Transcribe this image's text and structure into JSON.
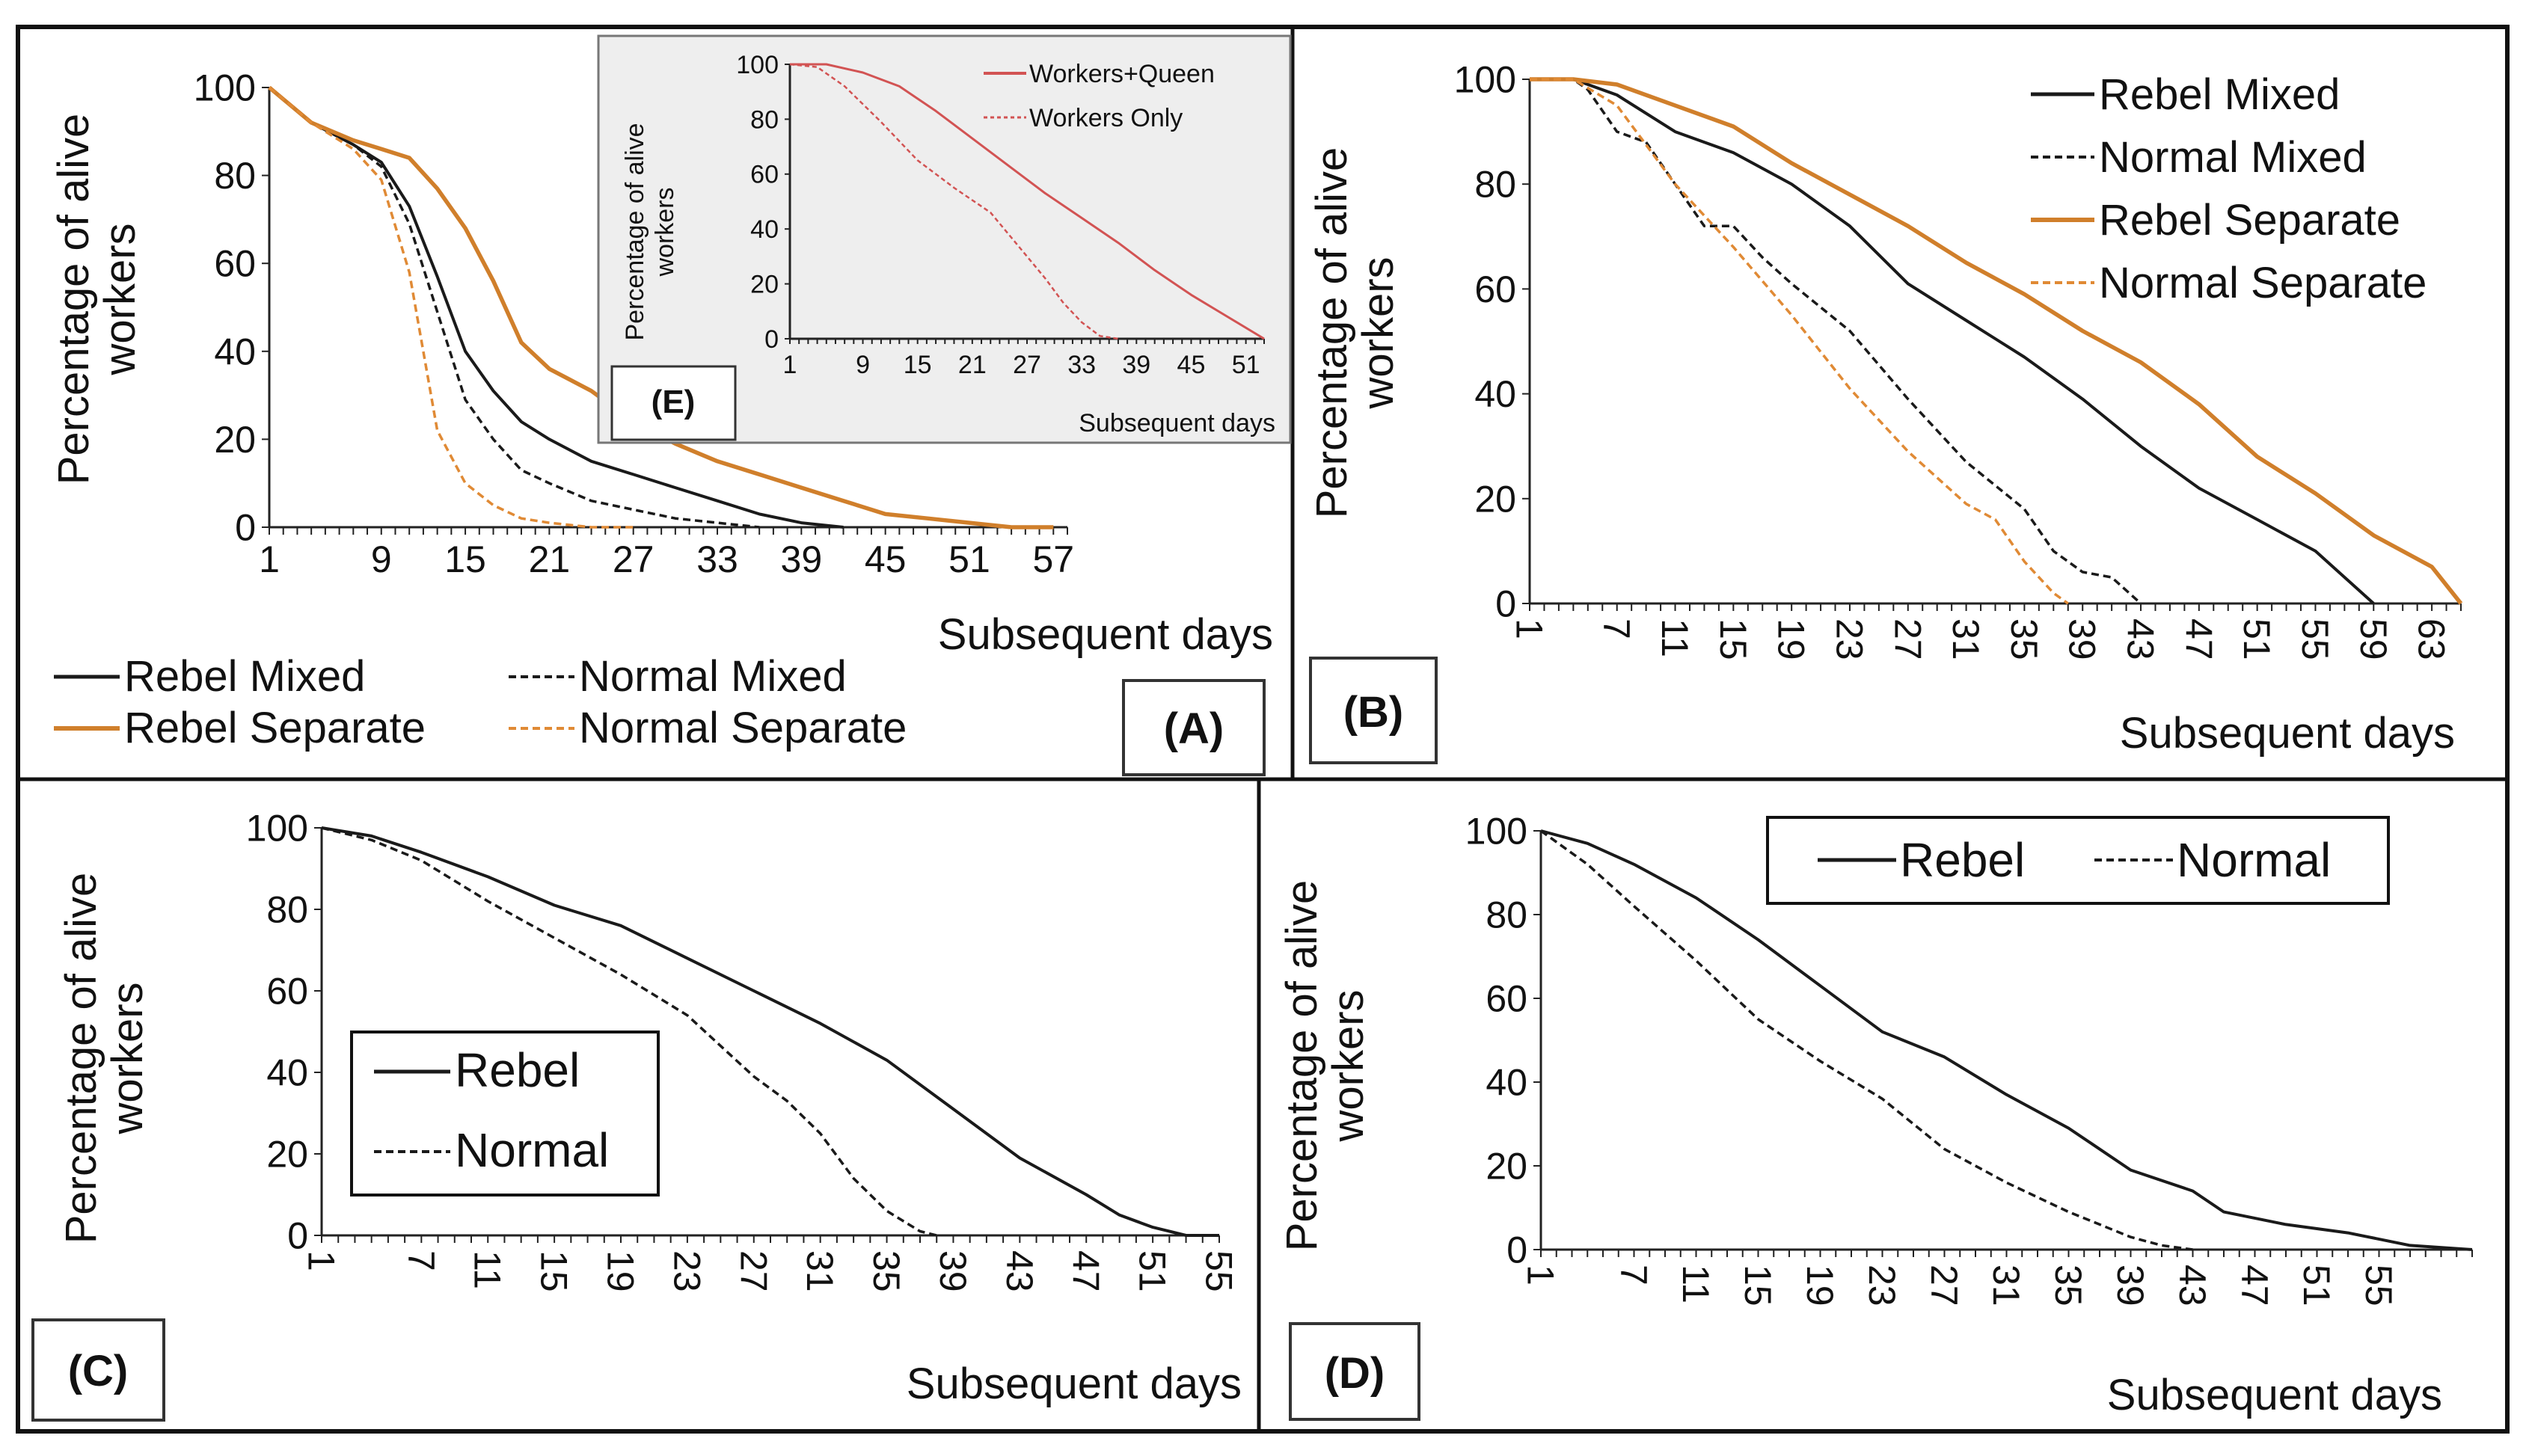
{
  "colors": {
    "rebel_mixed": "#1a1a1a",
    "normal_mixed": "#1a1a1a",
    "rebel_separate": "#d07f2b",
    "normal_separate": "#e08a35",
    "workers_queen": "#d25353",
    "workers_only": "#d25353",
    "inset_background": "#eeeeee"
  },
  "chart_data": [
    {
      "panel": "A",
      "label": "(A)",
      "type": "line",
      "title": "",
      "xlabel": "Subsequent days",
      "ylabel": [
        "Percentage of alive",
        "workers"
      ],
      "xlim": [
        1,
        58
      ],
      "ylim": [
        0,
        100
      ],
      "xticks": [
        "1",
        "9",
        "15",
        "21",
        "27",
        "33",
        "39",
        "45",
        "51",
        "57"
      ],
      "yticks": [
        "0",
        "20",
        "40",
        "60",
        "80",
        "100"
      ],
      "legend": [
        "Rebel Mixed",
        "Normal Mixed",
        "Rebel Separate",
        "Normal Separate"
      ],
      "series": [
        {
          "name": "Rebel Mixed",
          "style": "solid",
          "color": "#1a1a1a",
          "x": [
            1,
            4,
            7,
            9,
            11,
            13,
            15,
            17,
            19,
            21,
            24,
            27,
            30,
            33,
            36,
            39,
            42
          ],
          "y": [
            100,
            92,
            87,
            83,
            73,
            57,
            40,
            31,
            24,
            20,
            15,
            12,
            9,
            6,
            3,
            1,
            0
          ]
        },
        {
          "name": "Normal Mixed",
          "style": "dashed",
          "color": "#1a1a1a",
          "x": [
            1,
            4,
            7,
            9,
            11,
            13,
            15,
            17,
            19,
            21,
            24,
            27,
            30,
            33,
            36
          ],
          "y": [
            100,
            92,
            87,
            82,
            69,
            49,
            29,
            20,
            13,
            10,
            6,
            4,
            2,
            1,
            0
          ]
        },
        {
          "name": "Rebel Separate",
          "style": "solid",
          "color": "#d07f2b",
          "x": [
            1,
            4,
            7,
            9,
            11,
            13,
            15,
            17,
            19,
            21,
            24,
            27,
            30,
            33,
            36,
            39,
            42,
            45,
            48,
            51,
            54,
            57
          ],
          "y": [
            100,
            92,
            88,
            86,
            84,
            77,
            68,
            56,
            42,
            36,
            31,
            24,
            19,
            15,
            12,
            9,
            6,
            3,
            2,
            1,
            0,
            0
          ]
        },
        {
          "name": "Normal Separate",
          "style": "dashed",
          "color": "#e08a35",
          "x": [
            1,
            4,
            7,
            9,
            11,
            12,
            13,
            15,
            17,
            19,
            21,
            24,
            27
          ],
          "y": [
            100,
            92,
            86,
            79,
            58,
            40,
            22,
            10,
            5,
            2,
            1,
            0,
            0
          ]
        }
      ]
    },
    {
      "panel": "B",
      "label": "(B)",
      "type": "line",
      "title": "",
      "xlabel": "Subsequent days",
      "ylabel": [
        "Percentage of alive",
        "workers"
      ],
      "xlim": [
        1,
        65
      ],
      "ylim": [
        0,
        100
      ],
      "xticks": [
        "1",
        "7",
        "11",
        "15",
        "19",
        "23",
        "27",
        "31",
        "35",
        "39",
        "43",
        "47",
        "51",
        "55",
        "59",
        "63"
      ],
      "yticks": [
        "0",
        "20",
        "40",
        "60",
        "80",
        "100"
      ],
      "legend": [
        "Rebel Mixed",
        "Normal Mixed",
        "Rebel Separate",
        "Normal Separate"
      ],
      "series": [
        {
          "name": "Rebel Mixed",
          "style": "solid",
          "color": "#1a1a1a",
          "x": [
            1,
            4,
            7,
            11,
            15,
            19,
            23,
            27,
            31,
            35,
            39,
            43,
            47,
            51,
            55,
            59
          ],
          "y": [
            100,
            100,
            97,
            90,
            86,
            80,
            72,
            61,
            54,
            47,
            39,
            30,
            22,
            16,
            10,
            0
          ]
        },
        {
          "name": "Normal Mixed",
          "style": "dashed",
          "color": "#1a1a1a",
          "x": [
            1,
            4,
            5,
            7,
            9,
            11,
            13,
            15,
            17,
            19,
            23,
            27,
            31,
            35,
            37,
            39,
            41,
            43
          ],
          "y": [
            100,
            100,
            98,
            90,
            88,
            80,
            72,
            72,
            66,
            61,
            52,
            39,
            27,
            18,
            10,
            6,
            5,
            0
          ]
        },
        {
          "name": "Rebel Separate",
          "style": "solid",
          "color": "#d07f2b",
          "x": [
            1,
            4,
            7,
            11,
            15,
            19,
            23,
            27,
            31,
            35,
            39,
            43,
            47,
            51,
            55,
            59,
            63,
            65
          ],
          "y": [
            100,
            100,
            99,
            95,
            91,
            84,
            78,
            72,
            65,
            59,
            52,
            46,
            38,
            28,
            21,
            13,
            7,
            0
          ]
        },
        {
          "name": "Normal Separate",
          "style": "dashed",
          "color": "#e08a35",
          "x": [
            1,
            4,
            7,
            11,
            15,
            19,
            23,
            27,
            31,
            33,
            35,
            37,
            38
          ],
          "y": [
            100,
            100,
            95,
            80,
            68,
            55,
            41,
            29,
            19,
            16,
            8,
            2,
            0
          ]
        }
      ]
    },
    {
      "panel": "C",
      "label": "(C)",
      "type": "line",
      "title": "",
      "xlabel": "Subsequent days",
      "ylabel": [
        "Percentage of alive",
        "workers"
      ],
      "xlim": [
        1,
        55
      ],
      "ylim": [
        0,
        100
      ],
      "xticks": [
        "1",
        "7",
        "11",
        "15",
        "19",
        "23",
        "27",
        "31",
        "35",
        "39",
        "43",
        "47",
        "51",
        "55"
      ],
      "yticks": [
        "0",
        "20",
        "40",
        "60",
        "80",
        "100"
      ],
      "legend": [
        "Rebel",
        "Normal"
      ],
      "series": [
        {
          "name": "Rebel",
          "style": "solid",
          "color": "#1a1a1a",
          "x": [
            1,
            4,
            7,
            11,
            15,
            19,
            23,
            27,
            31,
            35,
            39,
            43,
            47,
            49,
            51,
            53,
            55
          ],
          "y": [
            100,
            98,
            94,
            88,
            81,
            76,
            68,
            60,
            52,
            43,
            31,
            19,
            10,
            5,
            2,
            0,
            0
          ]
        },
        {
          "name": "Normal",
          "style": "dashed",
          "color": "#1a1a1a",
          "x": [
            1,
            4,
            7,
            11,
            15,
            19,
            23,
            27,
            29,
            31,
            33,
            35,
            37,
            38
          ],
          "y": [
            100,
            97,
            92,
            82,
            73,
            64,
            54,
            39,
            33,
            25,
            14,
            6,
            1,
            0
          ]
        }
      ]
    },
    {
      "panel": "D",
      "label": "(D)",
      "type": "line",
      "title": "",
      "xlabel": "Subsequent days",
      "ylabel": [
        "Percentage of alive",
        "workers"
      ],
      "xlim": [
        1,
        61
      ],
      "ylim": [
        0,
        100
      ],
      "xticks": [
        "1",
        "7",
        "11",
        "15",
        "19",
        "23",
        "27",
        "31",
        "35",
        "39",
        "43",
        "47",
        "51",
        "55"
      ],
      "yticks": [
        "0",
        "20",
        "40",
        "60",
        "80",
        "100"
      ],
      "legend": [
        "Rebel",
        "Normal"
      ],
      "series": [
        {
          "name": "Rebel",
          "style": "solid",
          "color": "#1a1a1a",
          "x": [
            1,
            4,
            7,
            11,
            15,
            19,
            23,
            27,
            31,
            35,
            39,
            43,
            45,
            49,
            53,
            57,
            61
          ],
          "y": [
            100,
            97,
            92,
            84,
            74,
            63,
            52,
            46,
            37,
            29,
            19,
            14,
            9,
            6,
            4,
            1,
            0
          ]
        },
        {
          "name": "Normal",
          "style": "dashed",
          "color": "#1a1a1a",
          "x": [
            1,
            4,
            7,
            11,
            15,
            19,
            23,
            27,
            31,
            35,
            39,
            41,
            43
          ],
          "y": [
            100,
            92,
            82,
            69,
            55,
            45,
            36,
            24,
            16,
            9,
            3,
            1,
            0
          ]
        }
      ]
    },
    {
      "panel": "E",
      "label": "(E)",
      "type": "line",
      "title": "",
      "xlabel": "Subsequent days",
      "ylabel": [
        "Percentage of alive",
        "workers"
      ],
      "xlim": [
        1,
        53
      ],
      "ylim": [
        0,
        100
      ],
      "xticks": [
        "1",
        "9",
        "15",
        "21",
        "27",
        "33",
        "39",
        "45",
        "51"
      ],
      "yticks": [
        "0",
        "20",
        "40",
        "60",
        "80",
        "100"
      ],
      "legend": [
        "Workers+Queen",
        "Workers Only"
      ],
      "series": [
        {
          "name": "Workers+Queen",
          "style": "solid",
          "color": "#d25353",
          "x": [
            1,
            5,
            9,
            13,
            17,
            21,
            25,
            29,
            33,
            37,
            41,
            45,
            49,
            53
          ],
          "y": [
            100,
            100,
            97,
            92,
            83,
            73,
            63,
            53,
            44,
            35,
            25,
            16,
            8,
            0
          ]
        },
        {
          "name": "Workers Only",
          "style": "dashed",
          "color": "#d25353",
          "x": [
            1,
            4,
            7,
            11,
            15,
            19,
            23,
            25,
            27,
            29,
            31,
            33,
            35,
            37
          ],
          "y": [
            100,
            99,
            92,
            79,
            65,
            55,
            46,
            38,
            30,
            22,
            13,
            6,
            1,
            0
          ]
        }
      ]
    }
  ]
}
